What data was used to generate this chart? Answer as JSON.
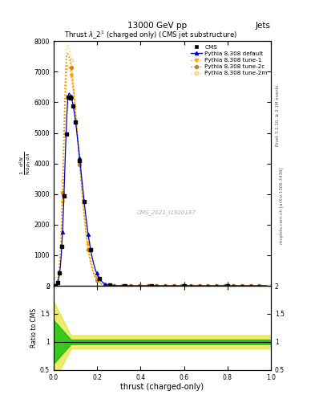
{
  "title_main": "13000 GeV pp",
  "title_right": "Jets",
  "plot_title": "Thrust $\\lambda\\_2^1$ (charged only) (CMS jet substructure)",
  "xlabel": "thrust (charged-only)",
  "ylabel_ratio": "Ratio to CMS",
  "watermark": "CMS_2021_I1920187",
  "right_label": "mcplots.cern.ch [arXiv:1306.3436]",
  "rivet_label": "Rivet 3.1.10, ≥ 3.1M events",
  "xlim": [
    0,
    1
  ],
  "ylim_main": [
    0,
    8000
  ],
  "ylim_ratio": [
    0.5,
    2
  ],
  "ytick_labels_main": [
    "",
    "000",
    "000",
    "000",
    "000",
    "000",
    "000",
    "000",
    "000"
  ],
  "ytick_vals_main": [
    0,
    1000,
    2000,
    3000,
    4000,
    5000,
    6000,
    7000,
    8000
  ],
  "yticks_ratio": [
    0.5,
    1,
    1.5,
    2
  ],
  "cms_color": "#000000",
  "default_color": "#0000cc",
  "tune1_color": "#ffa500",
  "tune2c_color": "#cc8800",
  "tune2m_color": "#ffcc44",
  "ratio_band_color_green": "#00bb00",
  "ratio_band_color_yellow": "#dddd00",
  "background_color": "#ffffff"
}
